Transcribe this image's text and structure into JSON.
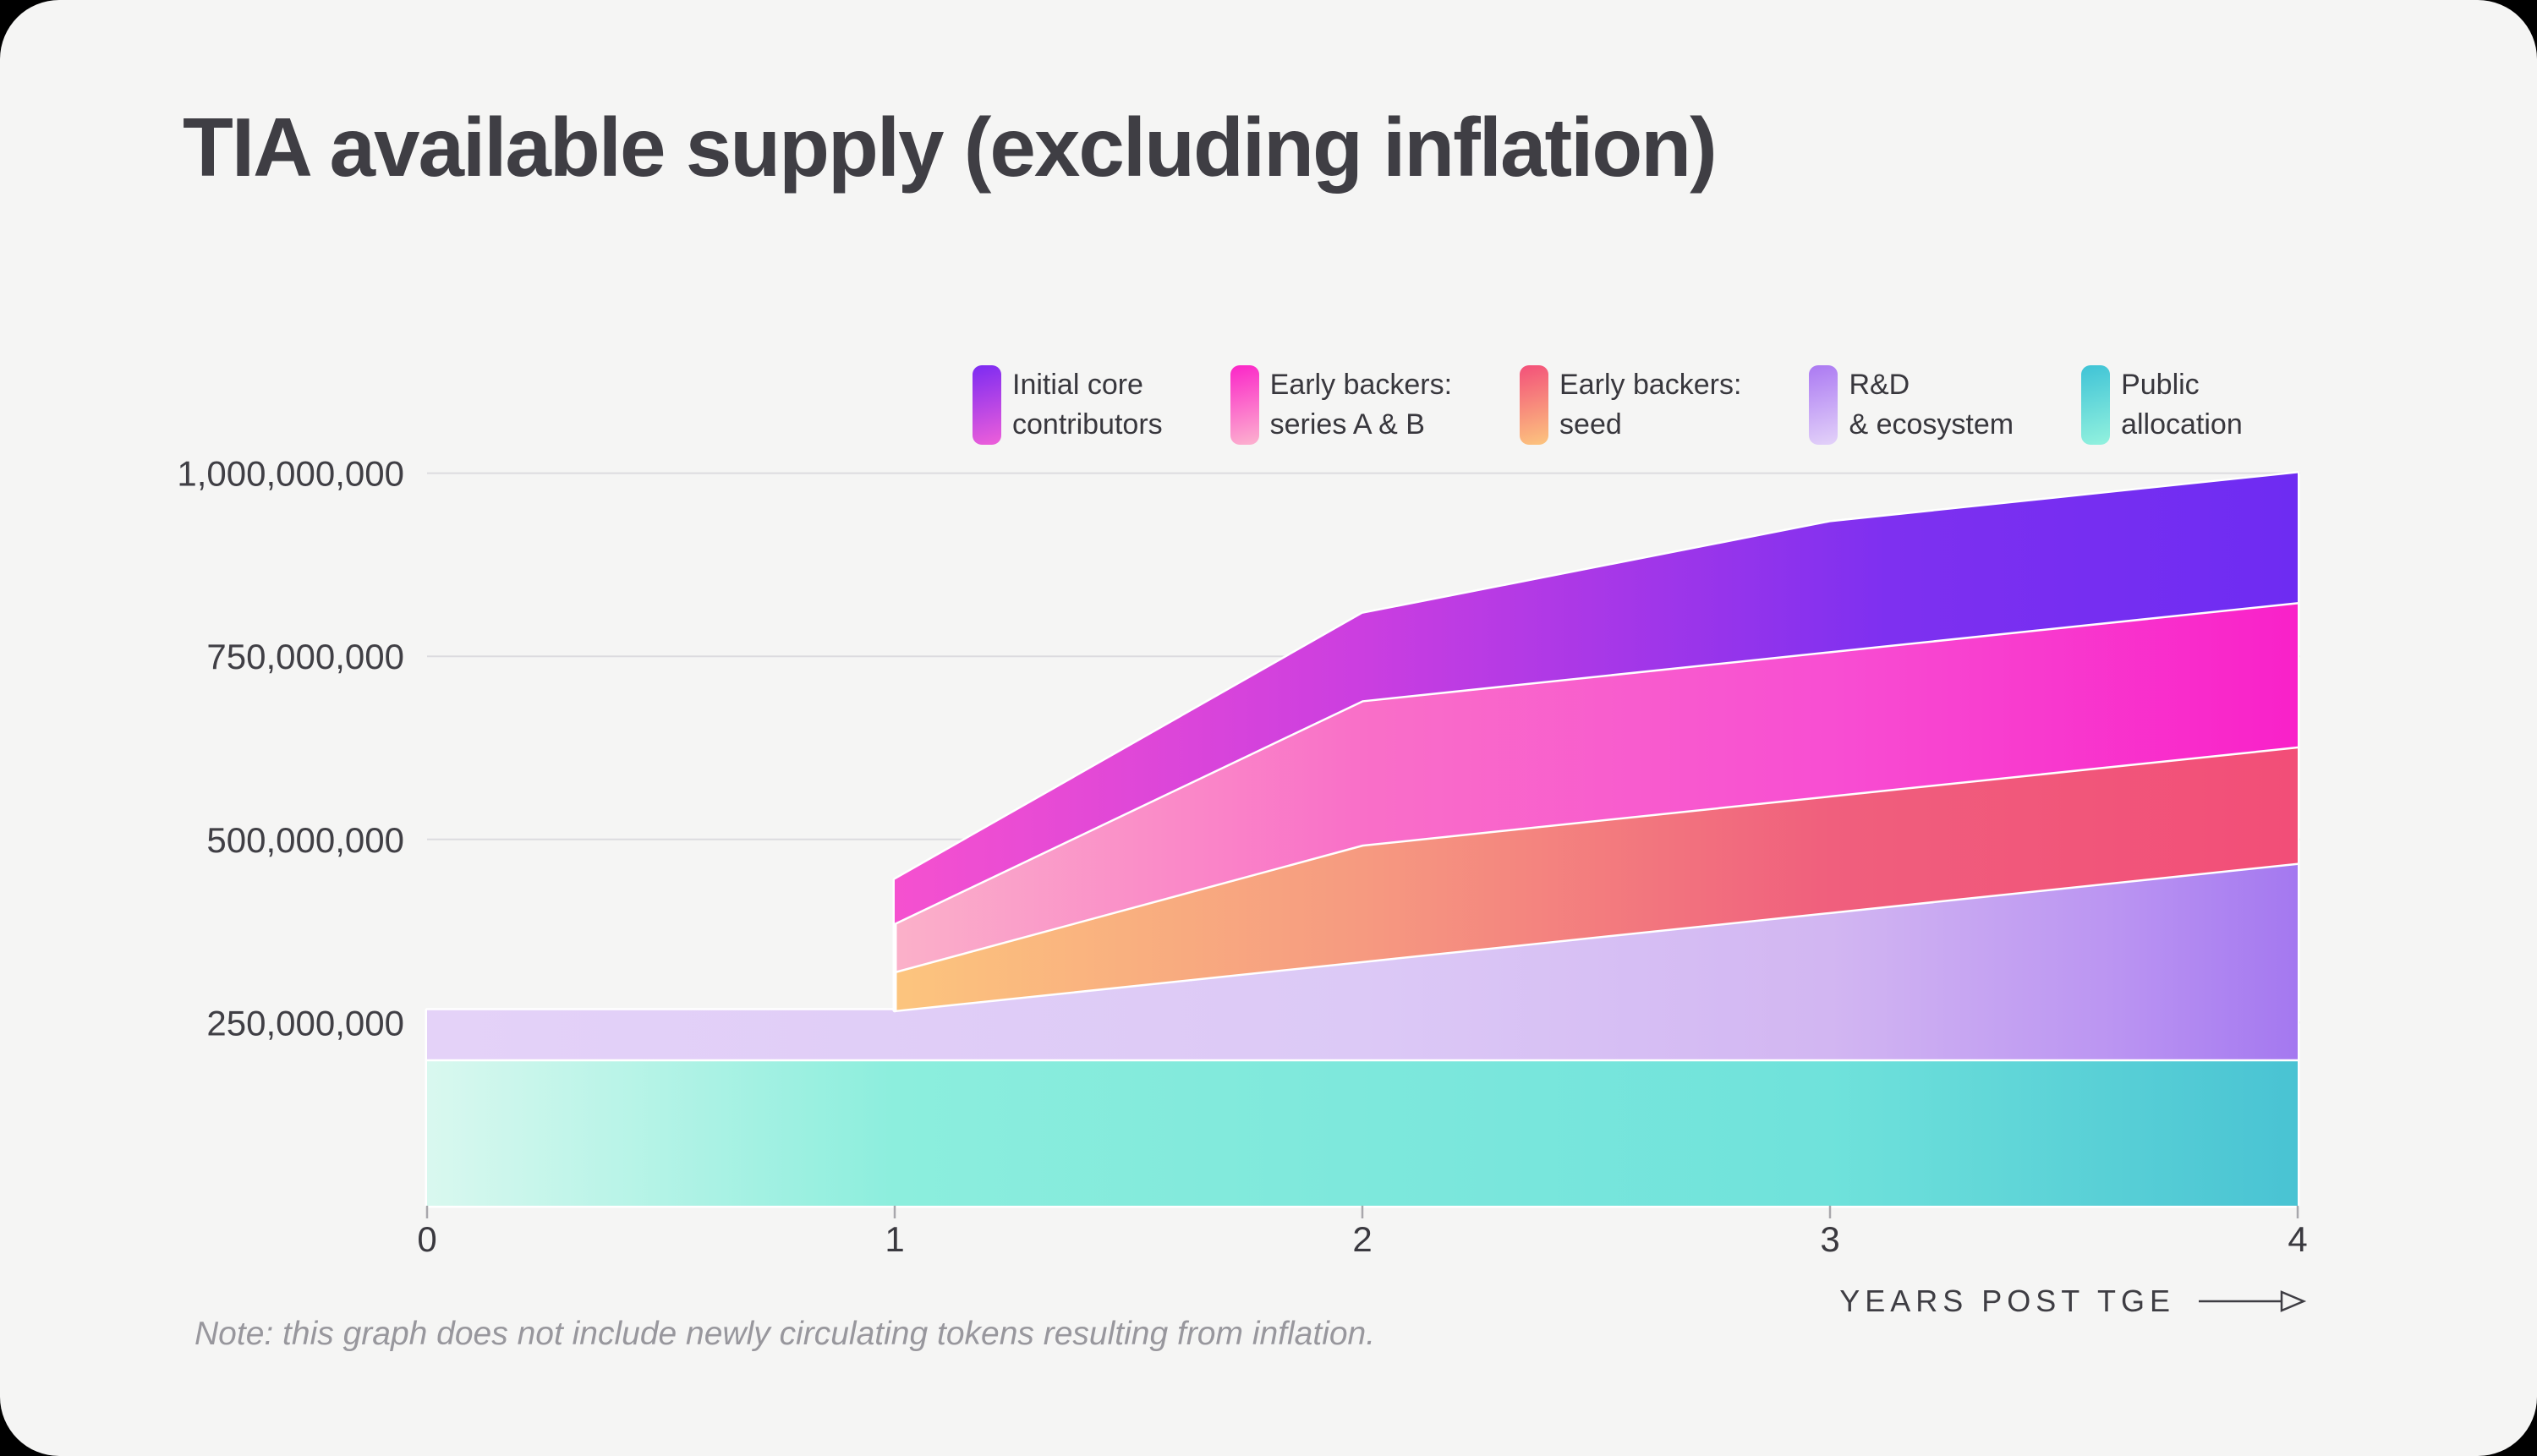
{
  "title": "TIA available supply (excluding inflation)",
  "note": "Note: this graph does not include newly circulating tokens resulting from inflation.",
  "legend": {
    "items": [
      {
        "id": "core",
        "line1": "Initial core",
        "line2": "contributors",
        "gradient": [
          "#7c2bf2",
          "#ee5fd9"
        ]
      },
      {
        "id": "ab",
        "line1": "Early backers:",
        "line2": "series A & B",
        "gradient": [
          "#fb25c8",
          "#fcb3cf"
        ]
      },
      {
        "id": "seed",
        "line1": "Early backers:",
        "line2": "seed",
        "gradient": [
          "#f3507a",
          "#fcc57e"
        ]
      },
      {
        "id": "rnd",
        "line1": "R&D",
        "line2": "& ecosystem",
        "gradient": [
          "#ab79f2",
          "#e3d2f9"
        ]
      },
      {
        "id": "public",
        "line1": "Public",
        "line2": "allocation",
        "gradient": [
          "#3fc3d6",
          "#93f2de"
        ]
      }
    ]
  },
  "chart_data": {
    "type": "area",
    "stacked": true,
    "title": "TIA available supply (excluding inflation)",
    "x_label": "YEARS POST TGE",
    "x_range": [
      0,
      4
    ],
    "y_range": [
      0,
      1000000000
    ],
    "x": [
      0,
      1,
      1,
      2,
      3,
      4
    ],
    "x_note": "duplicate x=1 encodes the vertical unlock cliff at year 1",
    "x_ticks": [
      0,
      1,
      2,
      3,
      4
    ],
    "y_ticks": [
      {
        "value": 250000000,
        "label": "250,000,000"
      },
      {
        "value": 500000000,
        "label": "500,000,000"
      },
      {
        "value": 750000000,
        "label": "750,000,000"
      },
      {
        "value": 1000000000,
        "label": "1,000,000,000"
      }
    ],
    "grid": true,
    "legend_position": "top",
    "series": [
      {
        "id": "public",
        "name": "Public allocation",
        "values": [
          200000000,
          200000000,
          200000000,
          200000000,
          200000000,
          200000000
        ],
        "gradient": [
          [
            0,
            "#d9f8ef"
          ],
          [
            0.25,
            "#8ceedd"
          ],
          [
            0.75,
            "#6fe2db"
          ],
          [
            1,
            "#49c3d3"
          ]
        ]
      },
      {
        "id": "rnd",
        "name": "R&D & ecosystem",
        "values": [
          67000000,
          67000000,
          67000000,
          134000000,
          201000000,
          268000000
        ],
        "gradient": [
          [
            0,
            "#e4d2f8"
          ],
          [
            0.5,
            "#dcc9f6"
          ],
          [
            0.75,
            "#d2b6f2"
          ],
          [
            0.9,
            "#bb95f2"
          ],
          [
            1,
            "#a478f0"
          ]
        ]
      },
      {
        "id": "seed",
        "name": "Early backers: seed",
        "values": [
          0,
          0,
          53000000,
          159000000,
          159000000,
          159000000
        ],
        "gradient": [
          [
            0.25,
            "#fcc57e"
          ],
          [
            0.5,
            "#f69a80"
          ],
          [
            0.75,
            "#f05f7d"
          ],
          [
            1,
            "#f24e78"
          ]
        ]
      },
      {
        "id": "ab",
        "name": "Early backers: series A & B",
        "values": [
          0,
          0,
          66000000,
          197000000,
          197000000,
          197000000
        ],
        "gradient": [
          [
            0.25,
            "#fbb1c9"
          ],
          [
            0.5,
            "#f96fc8"
          ],
          [
            0.75,
            "#f84ed2"
          ],
          [
            1,
            "#f921c9"
          ]
        ]
      },
      {
        "id": "core",
        "name": "Initial core contributors",
        "values": [
          0,
          0,
          59000000,
          118000000,
          176000000,
          176000000
        ],
        "gradient": [
          [
            0.25,
            "#f551cf"
          ],
          [
            0.5,
            "#cb3ee0"
          ],
          [
            0.78,
            "#7e30f0"
          ],
          [
            1,
            "#6e2cf2"
          ]
        ]
      }
    ]
  }
}
